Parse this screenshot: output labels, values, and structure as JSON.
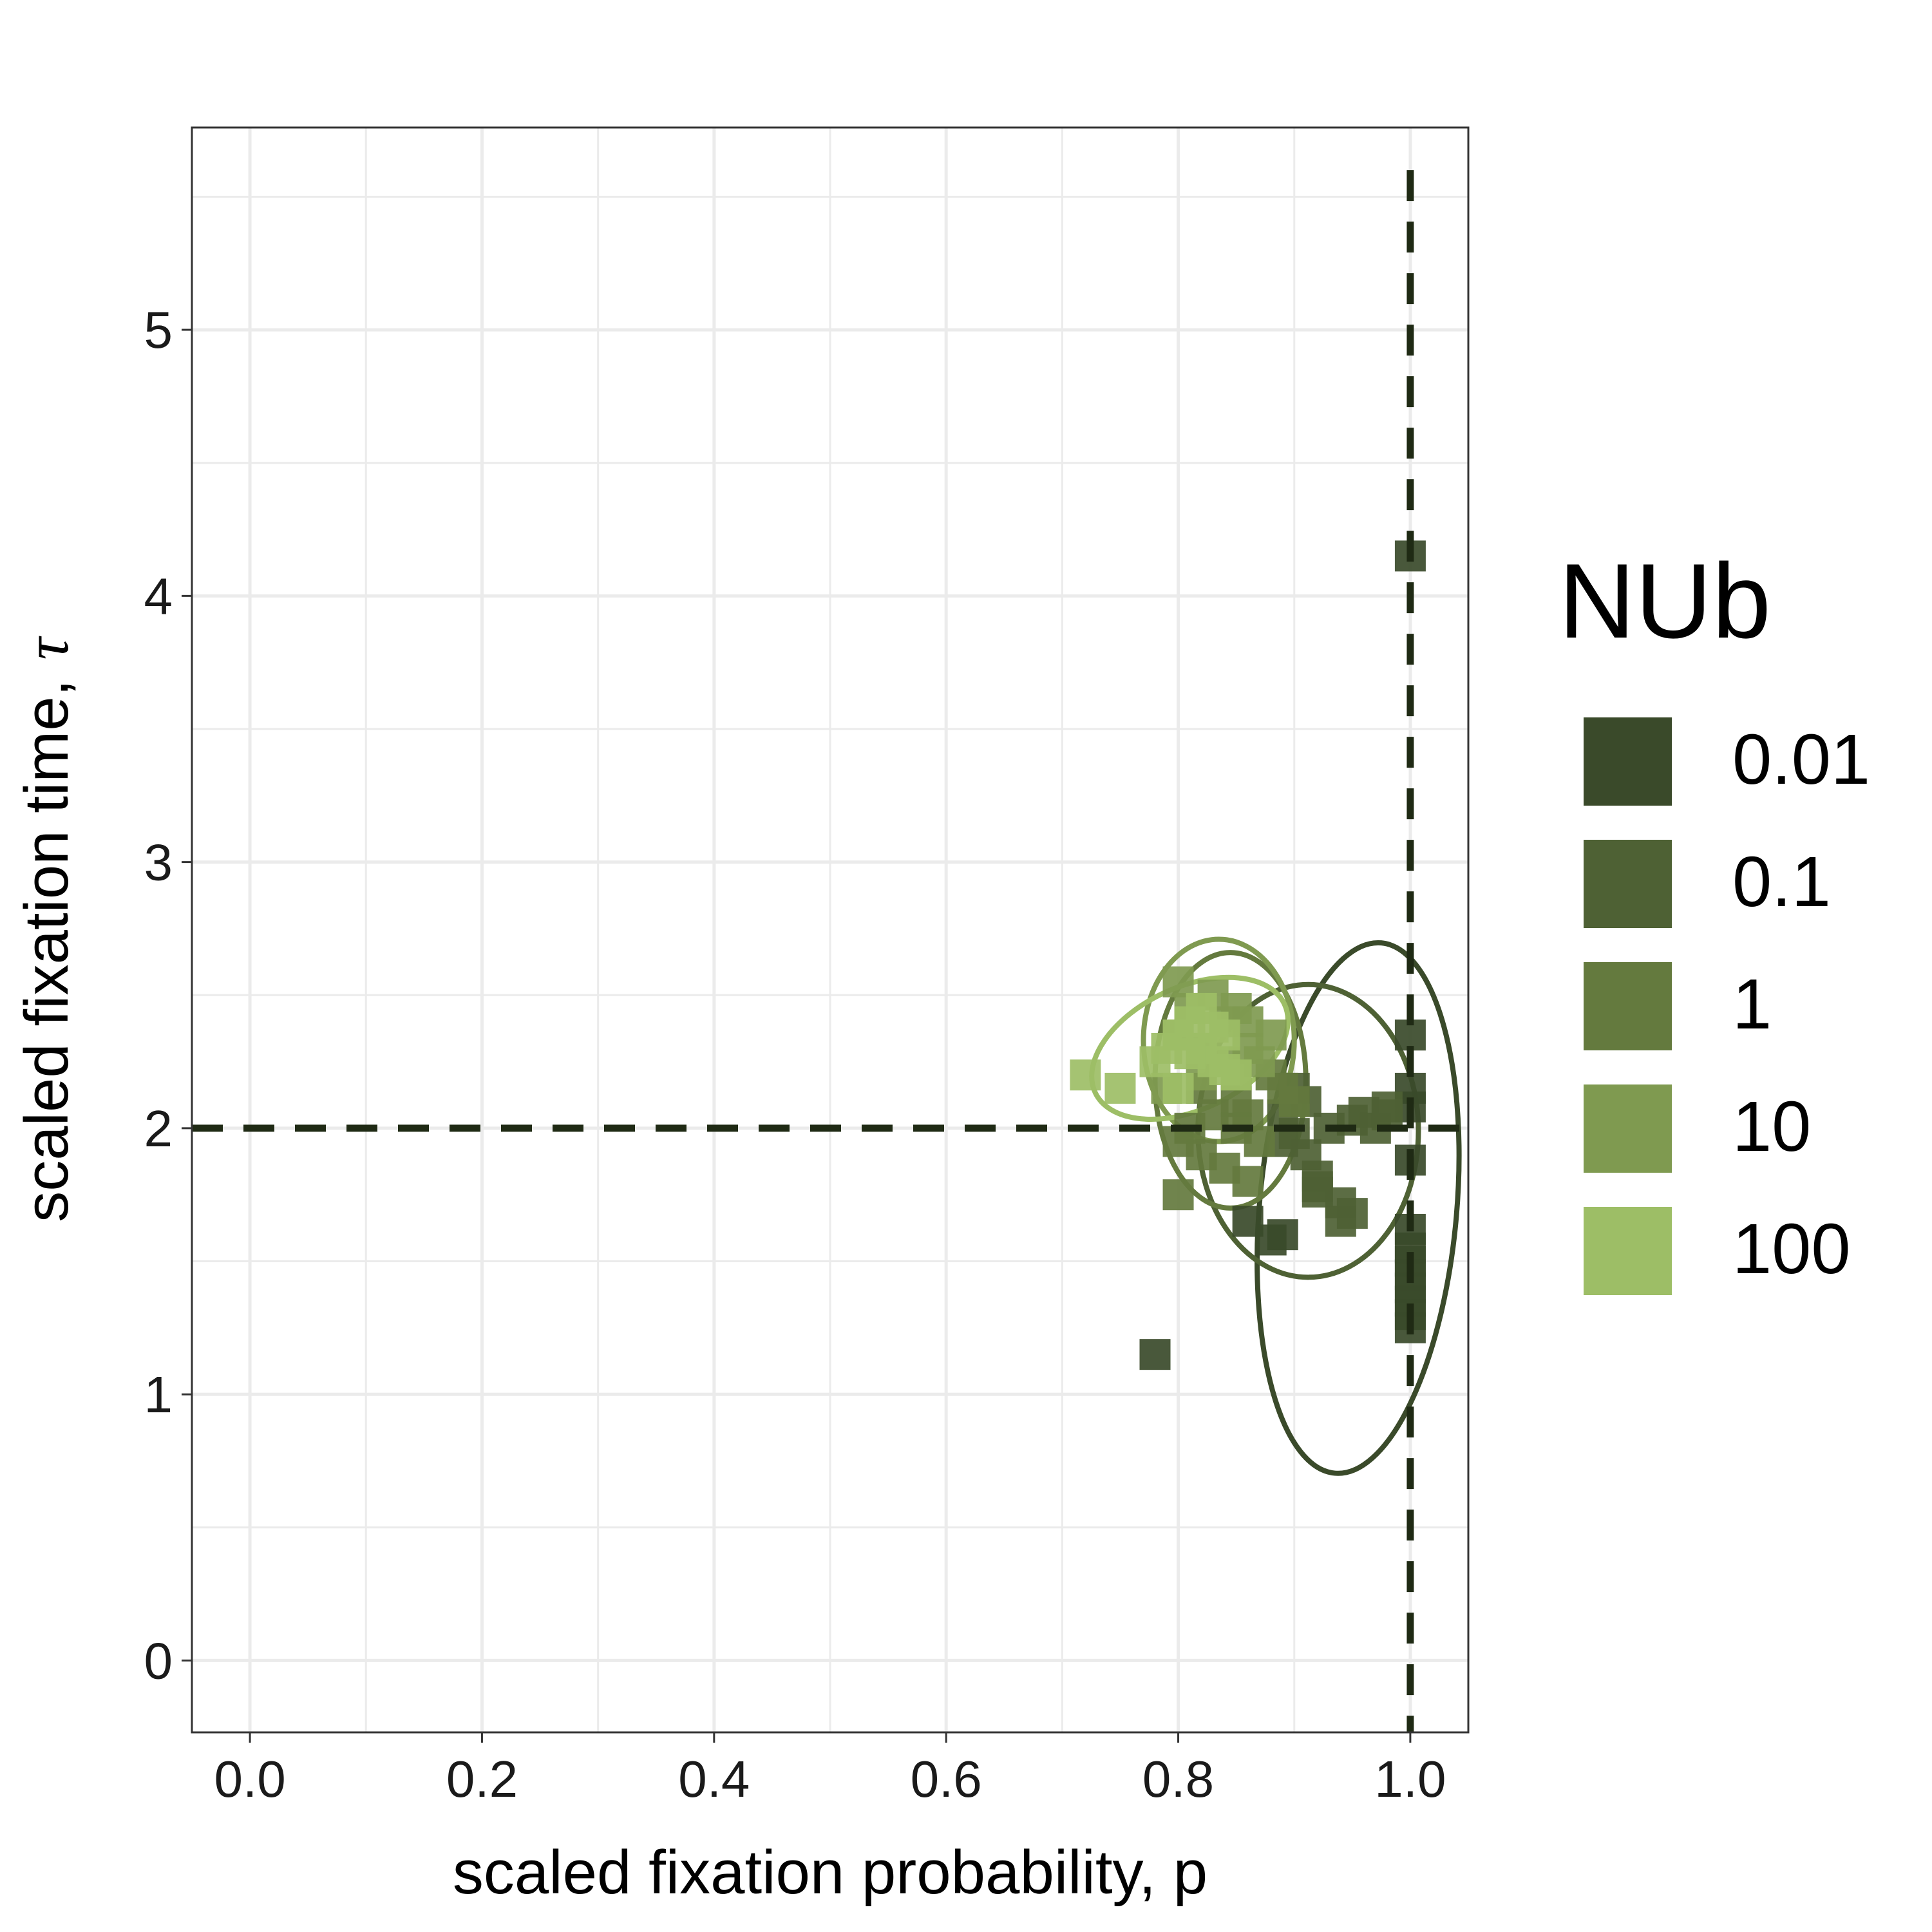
{
  "chart_data": {
    "type": "scatter",
    "title": "",
    "xlabel": "scaled fixation probability, p",
    "ylabel": "scaled fixation time,",
    "ylabel_symbol": "τ",
    "xlim": [
      -0.05,
      1.05
    ],
    "ylim": [
      -0.27,
      5.76
    ],
    "x_ticks": [
      0.0,
      0.2,
      0.4,
      0.6,
      0.8,
      1.0
    ],
    "x_tick_labels": [
      "0.0",
      "0.2",
      "0.4",
      "0.6",
      "0.8",
      "1.0"
    ],
    "y_ticks": [
      0,
      1,
      2,
      3,
      4,
      5
    ],
    "y_tick_labels": [
      "0",
      "1",
      "2",
      "3",
      "4",
      "5"
    ],
    "grid": true,
    "reference_lines": {
      "x": 1.0,
      "y": 2.0,
      "style": "dashed"
    },
    "legend": {
      "title": "NUb",
      "placement": "right",
      "entries": [
        "0.01",
        "0.1",
        "1",
        "10",
        "100"
      ]
    },
    "series": [
      {
        "name": "0.01",
        "color": "#3a4a2a",
        "points": [
          [
            0.78,
            1.15
          ],
          [
            0.86,
            1.65
          ],
          [
            0.88,
            1.58
          ],
          [
            0.89,
            1.6
          ],
          [
            1.0,
            4.15
          ],
          [
            1.0,
            2.35
          ],
          [
            1.0,
            2.15
          ],
          [
            1.0,
            2.08
          ],
          [
            1.0,
            1.88
          ],
          [
            1.0,
            1.62
          ],
          [
            1.0,
            1.55
          ],
          [
            1.0,
            1.5
          ],
          [
            1.0,
            1.45
          ],
          [
            1.0,
            1.4
          ],
          [
            1.0,
            1.35
          ],
          [
            1.0,
            1.3
          ],
          [
            1.0,
            1.25
          ]
        ],
        "ellipse": {
          "center": [
            0.955,
            1.7
          ],
          "rx": 0.085,
          "ry": 1.0,
          "rotation_deg": 5
        }
      },
      {
        "name": "0.1",
        "color": "#4e6134",
        "points": [
          [
            0.89,
            2.05
          ],
          [
            0.9,
            1.98
          ],
          [
            0.91,
            1.9
          ],
          [
            0.92,
            1.82
          ],
          [
            0.92,
            1.76
          ],
          [
            0.94,
            1.72
          ],
          [
            0.95,
            1.68
          ],
          [
            0.94,
            1.65
          ],
          [
            0.95,
            2.03
          ],
          [
            0.96,
            2.06
          ],
          [
            0.97,
            2.0
          ],
          [
            0.98,
            2.05
          ],
          [
            0.98,
            2.08
          ],
          [
            0.91,
            2.1
          ],
          [
            0.89,
            1.95
          ],
          [
            0.92,
            1.78
          ],
          [
            0.93,
            2.0
          ],
          [
            0.9,
            2.15
          ]
        ],
        "ellipse": {
          "center": [
            0.912,
            1.99
          ],
          "rx": 0.095,
          "ry": 0.55,
          "rotation_deg": 0
        }
      },
      {
        "name": "1",
        "color": "#647a3e",
        "points": [
          [
            0.8,
            1.95
          ],
          [
            0.81,
            2.0
          ],
          [
            0.82,
            1.9
          ],
          [
            0.84,
            1.85
          ],
          [
            0.85,
            2.1
          ],
          [
            0.86,
            2.05
          ],
          [
            0.87,
            1.95
          ],
          [
            0.88,
            2.2
          ],
          [
            0.89,
            2.15
          ],
          [
            0.86,
            1.8
          ],
          [
            0.83,
            2.05
          ],
          [
            0.8,
            1.75
          ],
          [
            0.82,
            2.15
          ],
          [
            0.9,
            2.1
          ],
          [
            0.85,
            2.0
          ]
        ],
        "ellipse": {
          "center": [
            0.845,
            2.18
          ],
          "rx": 0.065,
          "ry": 0.48,
          "rotation_deg": 0
        }
      },
      {
        "name": "10",
        "color": "#7f9a50",
        "points": [
          [
            0.8,
            2.35
          ],
          [
            0.81,
            2.45
          ],
          [
            0.82,
            2.3
          ],
          [
            0.83,
            2.5
          ],
          [
            0.84,
            2.4
          ],
          [
            0.85,
            2.45
          ],
          [
            0.86,
            2.3
          ],
          [
            0.87,
            2.25
          ],
          [
            0.88,
            2.35
          ],
          [
            0.82,
            2.2
          ],
          [
            0.84,
            2.25
          ],
          [
            0.85,
            2.2
          ],
          [
            0.79,
            2.15
          ],
          [
            0.8,
            2.55
          ],
          [
            0.86,
            2.4
          ]
        ],
        "ellipse": {
          "center": [
            0.835,
            2.33
          ],
          "rx": 0.065,
          "ry": 0.38,
          "rotation_deg": 0
        }
      },
      {
        "name": "100",
        "color": "#9dbe66",
        "points": [
          [
            0.72,
            2.2
          ],
          [
            0.75,
            2.15
          ],
          [
            0.78,
            2.25
          ],
          [
            0.79,
            2.3
          ],
          [
            0.8,
            2.35
          ],
          [
            0.81,
            2.4
          ],
          [
            0.82,
            2.3
          ],
          [
            0.83,
            2.25
          ],
          [
            0.84,
            2.35
          ],
          [
            0.85,
            2.2
          ],
          [
            0.8,
            2.15
          ],
          [
            0.82,
            2.45
          ],
          [
            0.83,
            2.38
          ],
          [
            0.81,
            2.28
          ],
          [
            0.84,
            2.22
          ]
        ],
        "ellipse": {
          "center": [
            0.81,
            2.3
          ],
          "rx": 0.09,
          "ry": 0.23,
          "rotation_deg": -25
        }
      }
    ]
  }
}
